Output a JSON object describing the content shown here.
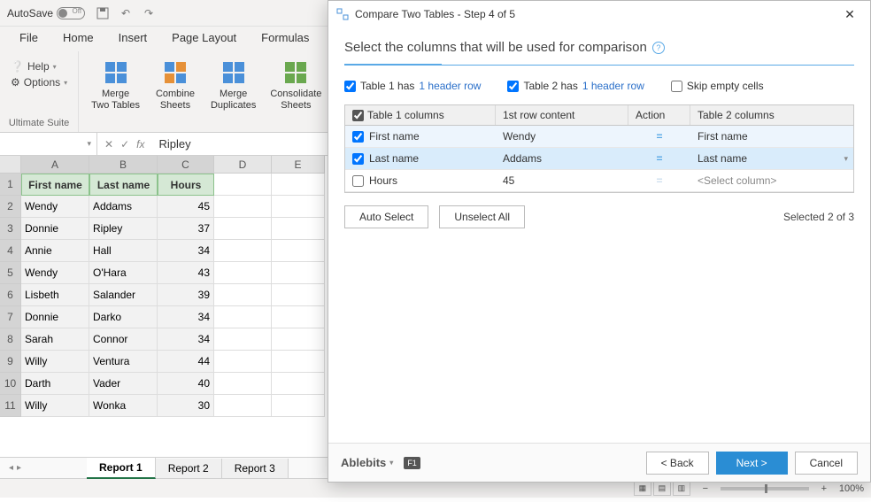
{
  "titlebar": {
    "autosave_label": "AutoSave",
    "autosave_state": "Off"
  },
  "ribbon_tabs": [
    "File",
    "Home",
    "Insert",
    "Page Layout",
    "Formulas"
  ],
  "ribbon": {
    "help_label": "Help",
    "options_label": "Options",
    "group1_label": "Ultimate Suite",
    "btn_merge_two": "Merge\nTwo Tables",
    "btn_combine": "Combine\nSheets",
    "btn_merge_dup": "Merge\nDuplicates",
    "btn_consolidate": "Consolidate\nSheets"
  },
  "formula_bar": {
    "name_box": "",
    "value": "Ripley"
  },
  "columns": [
    "A",
    "B",
    "C",
    "D",
    "E"
  ],
  "headers": [
    "First name",
    "Last name",
    "Hours"
  ],
  "rows": [
    [
      "Wendy",
      "Addams",
      "45"
    ],
    [
      "Donnie",
      "Ripley",
      "37"
    ],
    [
      "Annie",
      "Hall",
      "34"
    ],
    [
      "Wendy",
      "O'Hara",
      "43"
    ],
    [
      "Lisbeth",
      "Salander",
      "39"
    ],
    [
      "Donnie",
      "Darko",
      "34"
    ],
    [
      "Sarah",
      "Connor",
      "34"
    ],
    [
      "Willy",
      "Ventura",
      "44"
    ],
    [
      "Darth",
      "Vader",
      "40"
    ],
    [
      "Willy",
      "Wonka",
      "30"
    ]
  ],
  "sheet_tabs": [
    "Report 1",
    "Report 2",
    "Report 3"
  ],
  "status": {
    "zoom": "100%"
  },
  "dialog": {
    "title": "Compare Two Tables - Step 4 of 5",
    "heading": "Select the columns that will be used for comparison",
    "opt1_prefix": "Table 1  has",
    "opt1_link": "1 header row",
    "opt2_prefix": "Table 2 has",
    "opt2_link": "1 header row",
    "opt3": "Skip empty cells",
    "th1": "Table 1 columns",
    "th2": "1st row content",
    "th3": "Action",
    "th4": "Table 2 columns",
    "table_rows": [
      {
        "checked": true,
        "c1": "First name",
        "c2": "Wendy",
        "action": "=",
        "t2": "First name",
        "sel": "light"
      },
      {
        "checked": true,
        "c1": "Last name",
        "c2": "Addams",
        "action": "=",
        "t2": "Last name",
        "sel": "sel"
      },
      {
        "checked": false,
        "c1": "Hours",
        "c2": "45",
        "action": "=",
        "t2": "<Select column>",
        "sel": "none"
      }
    ],
    "auto_select": "Auto Select",
    "unselect_all": "Unselect All",
    "selected_text": "Selected 2 of 3",
    "brand": "Ablebits",
    "back": "< Back",
    "next": "Next >",
    "cancel": "Cancel"
  },
  "colors": {
    "excel_green": "#217346",
    "dialog_accent": "#5aa9e6",
    "row_selected": "#d9ecfb",
    "primary_btn": "#2a8dd4"
  }
}
